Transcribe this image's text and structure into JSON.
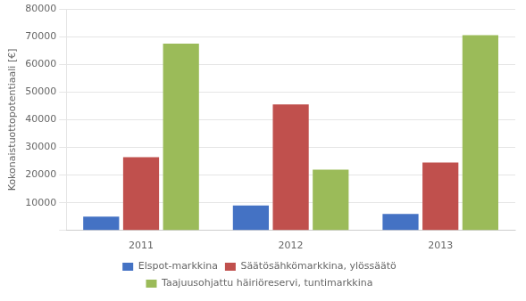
{
  "chart_data": {
    "type": "bar",
    "categories": [
      "2011",
      "2012",
      "2013"
    ],
    "series": [
      {
        "name": "Elspot-markkina",
        "color": "#4472C4",
        "values": [
          5000,
          9000,
          6000
        ]
      },
      {
        "name": "Säätösähkömarkkina, ylössäätö",
        "color": "#C0504D",
        "values": [
          26500,
          45500,
          24500
        ]
      },
      {
        "name": "Taajuusohjattu häiriöreservi, tuntimarkkina",
        "color": "#9BBB59",
        "values": [
          67500,
          22000,
          70500
        ]
      }
    ],
    "ylabel": "Kokonaistuottopotentiaali [€]",
    "ylim": [
      0,
      80000
    ],
    "yticks": [
      {
        "value": 0,
        "label": ""
      },
      10000,
      20000,
      30000,
      40000,
      50000,
      60000,
      70000,
      80000
    ],
    "grid": "y",
    "legend": "bottom"
  }
}
